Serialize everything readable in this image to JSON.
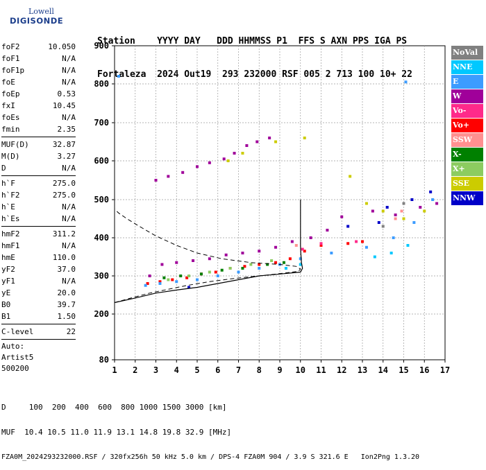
{
  "logo": {
    "line1": "Lowell",
    "line2": "DIGISONDE"
  },
  "header": {
    "line1": "Station    YYYY DAY   DDD HHMMSS P1  FFS S AXN PPS IGA PS",
    "line2": "Fortaleza  2024 Out19  293 232000 RSF 005 2 713 100 10+ 22"
  },
  "params": {
    "group1": [
      {
        "k": "foF2",
        "v": "10.050"
      },
      {
        "k": "foF1",
        "v": "N/A"
      },
      {
        "k": "foF1p",
        "v": "N/A"
      },
      {
        "k": "foE",
        "v": "N/A"
      },
      {
        "k": "foEp",
        "v": "0.53"
      },
      {
        "k": "fxI",
        "v": "10.45"
      },
      {
        "k": "foEs",
        "v": "N/A"
      },
      {
        "k": "fmin",
        "v": "2.35"
      }
    ],
    "group2": [
      {
        "k": "MUF(D)",
        "v": "32.87"
      },
      {
        "k": "M(D)",
        "v": "3.27"
      },
      {
        "k": "D",
        "v": "N/A"
      }
    ],
    "group3": [
      {
        "k": "h`F",
        "v": "275.0"
      },
      {
        "k": "h`F2",
        "v": "275.0"
      },
      {
        "k": "h`E",
        "v": "N/A"
      },
      {
        "k": "h`Es",
        "v": "N/A"
      }
    ],
    "group4": [
      {
        "k": "hmF2",
        "v": "311.2"
      },
      {
        "k": "hmF1",
        "v": "N/A"
      },
      {
        "k": "hmE",
        "v": "110.0"
      },
      {
        "k": "yF2",
        "v": "37.0"
      },
      {
        "k": "yF1",
        "v": "N/A"
      },
      {
        "k": "yE",
        "v": "20.0"
      },
      {
        "k": "B0",
        "v": "39.7"
      },
      {
        "k": "B1",
        "v": "1.50"
      }
    ],
    "clevel": {
      "k": "C-level",
      "v": "22"
    },
    "auto": [
      "Auto:",
      "Artist5",
      "500200"
    ]
  },
  "legend": [
    {
      "label": "NoVal",
      "color": "#808080"
    },
    {
      "label": "NNE",
      "color": "#00c8ff"
    },
    {
      "label": "E",
      "color": "#3c9cff"
    },
    {
      "label": "W",
      "color": "#a0009a"
    },
    {
      "label": "Vo-",
      "color": "#ff2a8a"
    },
    {
      "label": "Vo+",
      "color": "#ff0000"
    },
    {
      "label": "SSW",
      "color": "#ff9090"
    },
    {
      "label": "X-",
      "color": "#008000"
    },
    {
      "label": "X+",
      "color": "#8ccc60"
    },
    {
      "label": "SSE",
      "color": "#cccc00"
    },
    {
      "label": "NNW",
      "color": "#0000c8"
    }
  ],
  "footer": {
    "line1": "D     100  200  400  600  800 1000 1500 3000 [km]",
    "line2": "MUF  10.4 10.5 11.0 11.9 13.1 14.8 19.8 32.9 [MHz]",
    "line3": "FZA0M_2024293232000.RSF / 320fx256h 50 kHz 5.0 km / DPS-4 FZA0M 904 / 3.9 S 321.6 E   Ion2Png 1.3.20"
  },
  "chart_data": {
    "type": "scatter",
    "xlim": [
      1,
      17
    ],
    "ylim": [
      80,
      900
    ],
    "x_ticks": [
      1,
      2,
      3,
      4,
      5,
      6,
      7,
      8,
      9,
      10,
      11,
      12,
      13,
      14,
      15,
      16,
      17
    ],
    "y_ticks": [
      80,
      200,
      300,
      400,
      500,
      600,
      700,
      800,
      900
    ],
    "grid": true,
    "series": [
      {
        "name": "W",
        "color": "#a0009a",
        "points": [
          [
            3.0,
            550
          ],
          [
            3.6,
            560
          ],
          [
            4.3,
            570
          ],
          [
            5.0,
            585
          ],
          [
            5.6,
            595
          ],
          [
            6.3,
            605
          ],
          [
            6.8,
            620
          ],
          [
            7.4,
            640
          ],
          [
            7.9,
            650
          ],
          [
            8.5,
            660
          ],
          [
            2.7,
            300
          ],
          [
            3.3,
            330
          ],
          [
            4.0,
            335
          ],
          [
            4.8,
            340
          ],
          [
            5.6,
            345
          ],
          [
            6.4,
            355
          ],
          [
            7.2,
            360
          ],
          [
            8.0,
            365
          ],
          [
            8.8,
            375
          ],
          [
            9.6,
            390
          ],
          [
            10.5,
            400
          ],
          [
            11.3,
            420
          ],
          [
            12.0,
            455
          ],
          [
            13.5,
            470
          ],
          [
            14.6,
            460
          ],
          [
            15.8,
            480
          ],
          [
            16.6,
            490
          ]
        ]
      },
      {
        "name": "Vo+",
        "color": "#ff0000",
        "points": [
          [
            2.6,
            280
          ],
          [
            3.2,
            285
          ],
          [
            3.8,
            290
          ],
          [
            4.5,
            295
          ],
          [
            5.2,
            305
          ],
          [
            5.9,
            310
          ],
          [
            6.6,
            320
          ],
          [
            7.3,
            325
          ],
          [
            8.0,
            330
          ],
          [
            8.8,
            335
          ],
          [
            9.5,
            345
          ],
          [
            10.2,
            365
          ],
          [
            11.0,
            380
          ],
          [
            12.3,
            385
          ],
          [
            13.0,
            390
          ]
        ]
      },
      {
        "name": "E",
        "color": "#3c9cff",
        "points": [
          [
            2.5,
            275
          ],
          [
            3.2,
            280
          ],
          [
            4.0,
            285
          ],
          [
            5.0,
            290
          ],
          [
            6.0,
            300
          ],
          [
            7.0,
            310
          ],
          [
            8.0,
            320
          ],
          [
            9.0,
            330
          ],
          [
            10.0,
            345
          ],
          [
            11.5,
            360
          ],
          [
            13.2,
            375
          ],
          [
            14.5,
            400
          ],
          [
            15.5,
            440
          ],
          [
            16.4,
            500
          ],
          [
            1.2,
            820
          ],
          [
            15.1,
            805
          ]
        ]
      },
      {
        "name": "NNE",
        "color": "#00c8ff",
        "points": [
          [
            13.6,
            350
          ],
          [
            14.4,
            360
          ],
          [
            15.2,
            380
          ],
          [
            9.3,
            320
          ],
          [
            10.0,
            330
          ]
        ]
      },
      {
        "name": "X-",
        "color": "#008000",
        "points": [
          [
            3.4,
            295
          ],
          [
            4.2,
            300
          ],
          [
            5.2,
            305
          ],
          [
            6.2,
            315
          ],
          [
            7.2,
            320
          ],
          [
            8.4,
            330
          ],
          [
            9.2,
            335
          ]
        ]
      },
      {
        "name": "X+",
        "color": "#8ccc60",
        "points": [
          [
            3.6,
            290
          ],
          [
            4.6,
            300
          ],
          [
            5.6,
            310
          ],
          [
            6.6,
            320
          ],
          [
            7.6,
            330
          ],
          [
            8.6,
            340
          ]
        ]
      },
      {
        "name": "SSE",
        "color": "#cccc00",
        "points": [
          [
            6.5,
            600
          ],
          [
            7.2,
            620
          ],
          [
            8.8,
            650
          ],
          [
            10.2,
            660
          ],
          [
            12.4,
            560
          ],
          [
            13.2,
            490
          ],
          [
            14.0,
            470
          ],
          [
            15.0,
            450
          ],
          [
            16.0,
            470
          ]
        ]
      },
      {
        "name": "NNW",
        "color": "#0000c8",
        "points": [
          [
            4.6,
            270
          ],
          [
            12.3,
            430
          ],
          [
            13.8,
            440
          ],
          [
            14.2,
            480
          ],
          [
            15.4,
            500
          ],
          [
            16.3,
            520
          ]
        ]
      },
      {
        "name": "SSW",
        "color": "#ff9090",
        "points": [
          [
            14.6,
            450
          ],
          [
            14.9,
            470
          ],
          [
            9.8,
            380
          ]
        ]
      },
      {
        "name": "Vo-",
        "color": "#ff2a8a",
        "points": [
          [
            10.1,
            370
          ],
          [
            11.0,
            385
          ],
          [
            12.7,
            390
          ]
        ]
      },
      {
        "name": "NoVal",
        "color": "#808080",
        "points": [
          [
            14.0,
            430
          ],
          [
            15.0,
            490
          ]
        ]
      }
    ],
    "profile_solid": [
      [
        1.0,
        230
      ],
      [
        2.0,
        242
      ],
      [
        3.0,
        255
      ],
      [
        4.0,
        263
      ],
      [
        5.0,
        270
      ],
      [
        6.0,
        280
      ],
      [
        7.0,
        290
      ],
      [
        8.0,
        300
      ],
      [
        9.0,
        305
      ],
      [
        9.6,
        308
      ],
      [
        10.0,
        310
      ],
      [
        10.1,
        320
      ],
      [
        10.05,
        335
      ],
      [
        10.02,
        360
      ],
      [
        10.0,
        380
      ],
      [
        10.0,
        420
      ],
      [
        10.0,
        470
      ],
      [
        10.0,
        500
      ]
    ],
    "profile_dashed": [
      [
        1.0,
        230
      ],
      [
        1.8,
        242
      ],
      [
        2.7,
        255
      ],
      [
        3.6,
        265
      ],
      [
        4.5,
        275
      ],
      [
        5.6,
        285
      ],
      [
        6.6,
        292
      ],
      [
        7.6,
        298
      ],
      [
        8.5,
        303
      ],
      [
        9.3,
        308
      ],
      [
        9.9,
        312
      ],
      [
        10.0,
        318
      ],
      [
        9.8,
        325
      ],
      [
        9.0,
        330
      ],
      [
        7.6,
        335
      ],
      [
        6.2,
        345
      ],
      [
        5.0,
        360
      ],
      [
        4.0,
        380
      ],
      [
        3.0,
        405
      ],
      [
        2.2,
        430
      ],
      [
        1.6,
        450
      ],
      [
        1.2,
        465
      ],
      [
        1.0,
        475
      ]
    ]
  }
}
